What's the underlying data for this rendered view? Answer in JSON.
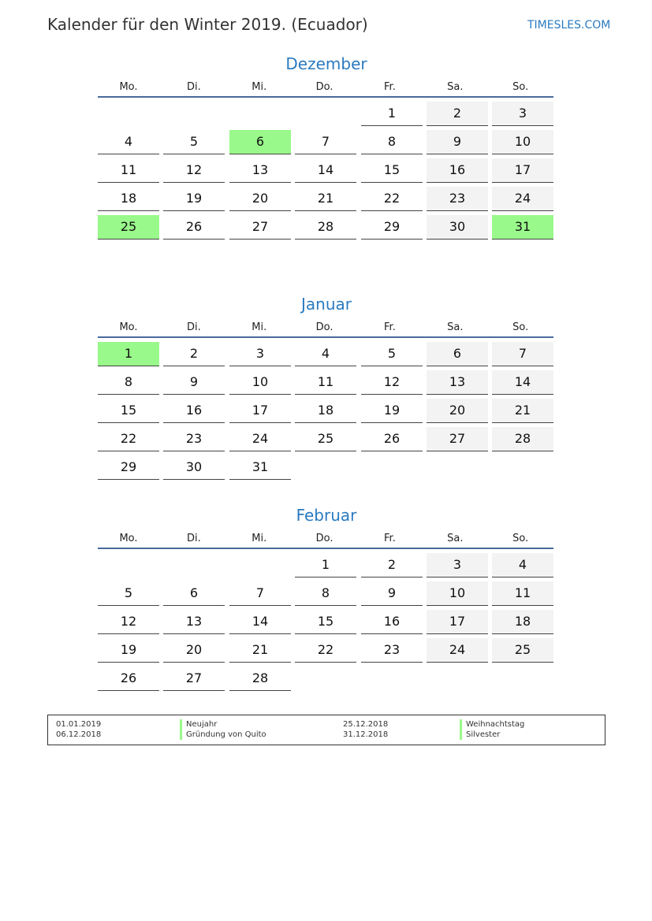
{
  "header": {
    "title": "Kalender für den Winter 2019. (Ecuador)",
    "brand": "TIMESLES.COM"
  },
  "weekdays": [
    "Mo.",
    "Di.",
    "Mi.",
    "Do.",
    "Fr.",
    "Sa.",
    "So."
  ],
  "colors": {
    "accent": "#2a7ac0",
    "holiday": "#99f98a",
    "weekend": "#f3f3f3"
  },
  "months": [
    {
      "name": "Dezember",
      "start_weekday": 5,
      "days": 31,
      "holidays": [
        6,
        25,
        31
      ]
    },
    {
      "name": "Januar",
      "start_weekday": 1,
      "days": 31,
      "holidays": [
        1
      ]
    },
    {
      "name": "Februar",
      "start_weekday": 4,
      "days": 28,
      "holidays": []
    }
  ],
  "legend": [
    {
      "date": "01.01.2019",
      "name": "Neujahr"
    },
    {
      "date": "06.12.2018",
      "name": "Gründung von Quito"
    },
    {
      "date": "25.12.2018",
      "name": "Weihnachtstag"
    },
    {
      "date": "31.12.2018",
      "name": "Silvester"
    }
  ]
}
